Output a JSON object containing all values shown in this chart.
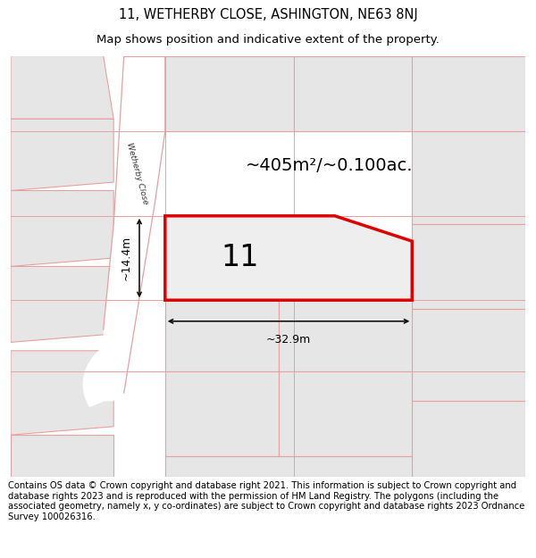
{
  "title_line1": "11, WETHERBY CLOSE, ASHINGTON, NE63 8NJ",
  "title_line2": "Map shows position and indicative extent of the property.",
  "area_text": "~405m²/~0.100ac.",
  "number_label": "11",
  "width_label": "~32.9m",
  "height_label": "~14.4m",
  "road_label": "Wetherby Close",
  "footer_text": "Contains OS data © Crown copyright and database right 2021. This information is subject to Crown copyright and database rights 2023 and is reproduced with the permission of HM Land Registry. The polygons (including the associated geometry, namely x, y co-ordinates) are subject to Crown copyright and database rights 2023 Ordnance Survey 100026316.",
  "bg_color": "#ffffff",
  "map_bg": "#f2f2f2",
  "plot_fill": "#eeeeee",
  "plot_border": "#dd0000",
  "other_plot_fill": "#e6e6e6",
  "other_plot_border": "#e8a0a0",
  "road_fill": "#ffffff",
  "road_line": "#e8a0a0",
  "dim_line_color": "#000000",
  "title_fontsize": 10.5,
  "subtitle_fontsize": 9.5,
  "footer_fontsize": 7.2,
  "area_fontsize": 14,
  "number_fontsize": 24,
  "dim_fontsize": 9
}
